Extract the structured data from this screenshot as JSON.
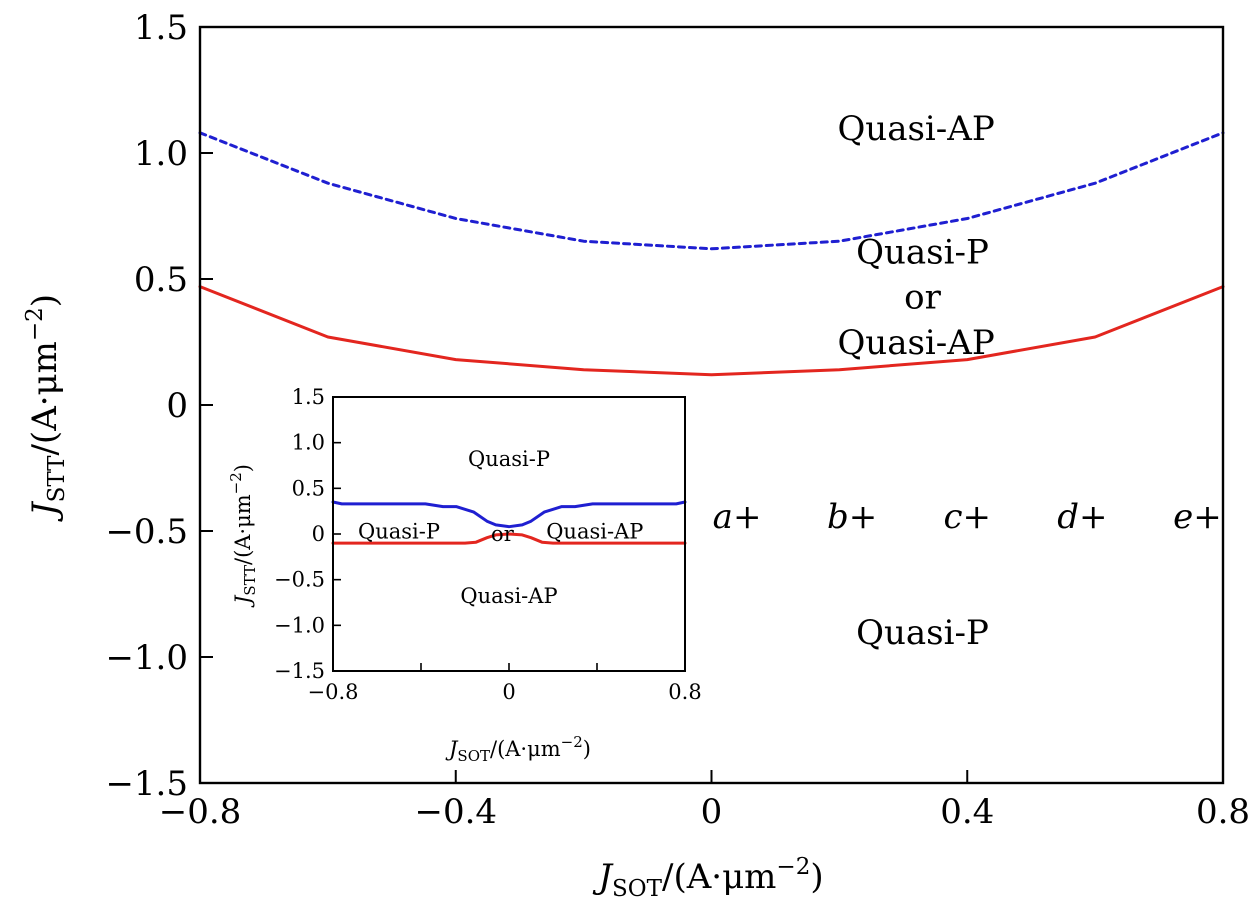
{
  "chart_data": [
    {
      "type": "line",
      "xlim": [
        -0.8,
        0.8
      ],
      "ylim": [
        -1.5,
        1.5
      ],
      "x_ticks": [
        -0.8,
        -0.4,
        0,
        0.4,
        0.8
      ],
      "x_tick_labels": [
        "−0.8",
        "−0.4",
        "0",
        "0.4",
        "0.8"
      ],
      "y_ticks": [
        -1.5,
        -1.0,
        -0.5,
        0,
        0.5,
        1.0,
        1.5
      ],
      "y_tick_labels": [
        "−1.5",
        "−1.0",
        "−0.5",
        "0",
        "0.5",
        "1.0",
        "1.5"
      ],
      "xlabel": {
        "symbol": "J",
        "subscript": "SOT",
        "unit": "/(A·μm",
        "exponent": "−2",
        "close": ")"
      },
      "ylabel": {
        "symbol": "J",
        "subscript": "STT",
        "unit": "/(A·μm",
        "exponent": "−2",
        "close": ")"
      },
      "grid": false,
      "series": [
        {
          "style": "dashed",
          "color": "#1f1fd1",
          "x": [
            -0.8,
            -0.6,
            -0.4,
            -0.2,
            0,
            0.2,
            0.4,
            0.6,
            0.8
          ],
          "y": [
            1.08,
            0.88,
            0.74,
            0.65,
            0.62,
            0.65,
            0.74,
            0.88,
            1.08
          ]
        },
        {
          "style": "solid",
          "color": "#e3261f",
          "x": [
            -0.8,
            -0.6,
            -0.4,
            -0.2,
            0,
            0.2,
            0.4,
            0.6,
            0.8
          ],
          "y": [
            0.47,
            0.27,
            0.18,
            0.14,
            0.12,
            0.14,
            0.18,
            0.27,
            0.47
          ]
        }
      ],
      "region_labels": [
        {
          "text": "Quasi-AP",
          "x": 0.32,
          "y": 1.1
        },
        {
          "text": "Quasi-P",
          "x": 0.33,
          "y": 0.61
        },
        {
          "text": "or",
          "x": 0.33,
          "y": 0.43
        },
        {
          "text": "Quasi-AP",
          "x": 0.32,
          "y": 0.25
        },
        {
          "text": "Quasi-P",
          "x": 0.33,
          "y": -0.9
        }
      ],
      "markers": [
        {
          "letter": "a",
          "x": 0.04,
          "y": -0.44
        },
        {
          "letter": "b",
          "x": 0.22,
          "y": -0.44
        },
        {
          "letter": "c",
          "x": 0.4,
          "y": -0.44
        },
        {
          "letter": "d",
          "x": 0.58,
          "y": -0.44
        },
        {
          "letter": "e",
          "x": 0.76,
          "y": -0.44
        }
      ]
    },
    {
      "type": "line",
      "xlim": [
        -0.8,
        0.8
      ],
      "ylim": [
        -1.5,
        1.5
      ],
      "x_ticks": [
        -0.8,
        0,
        0.8
      ],
      "x_tick_labels": [
        "−0.8",
        "0",
        "0.8"
      ],
      "x_minor_ticks": [
        -0.4,
        0.4
      ],
      "y_ticks": [
        -1.5,
        -1.0,
        -0.5,
        0,
        0.5,
        1.0,
        1.5
      ],
      "y_tick_labels": [
        "−1.5",
        "−1.0",
        "−0.5",
        "0",
        "0.5",
        "1.0",
        "1.5"
      ],
      "xlabel": {
        "symbol": "J",
        "subscript": "SOT",
        "unit": "/(A·μm",
        "exponent": "−2",
        "close": ")"
      },
      "ylabel": {
        "symbol": "J",
        "subscript": "STT",
        "unit": "/(A·μm",
        "exponent": "−2",
        "close": ")"
      },
      "grid": false,
      "series": [
        {
          "style": "solid",
          "color": "#1f1fd1",
          "x": [
            -0.8,
            -0.76,
            -0.6,
            -0.38,
            -0.3,
            -0.24,
            -0.16,
            -0.1,
            -0.06,
            0,
            0.06,
            0.1,
            0.16,
            0.24,
            0.3,
            0.38,
            0.6,
            0.76,
            0.8
          ],
          "y": [
            0.35,
            0.33,
            0.33,
            0.33,
            0.3,
            0.3,
            0.24,
            0.14,
            0.1,
            0.08,
            0.1,
            0.14,
            0.24,
            0.3,
            0.3,
            0.33,
            0.33,
            0.33,
            0.35
          ]
        },
        {
          "style": "solid",
          "color": "#e3261f",
          "x": [
            -0.8,
            -0.2,
            -0.15,
            -0.1,
            -0.06,
            0,
            0.06,
            0.1,
            0.15,
            0.2,
            0.8
          ],
          "y": [
            -0.1,
            -0.1,
            -0.09,
            -0.04,
            -0.01,
            0.0,
            -0.01,
            -0.04,
            -0.09,
            -0.1,
            -0.1
          ]
        }
      ],
      "region_labels": [
        {
          "text": "Quasi-P",
          "x": 0.0,
          "y": 0.82
        },
        {
          "text": "Quasi-P",
          "x": -0.5,
          "y": 0.03
        },
        {
          "text": "or",
          "x": -0.03,
          "y": 0.0
        },
        {
          "text": "Quasi-AP",
          "x": 0.39,
          "y": 0.03
        },
        {
          "text": "Quasi-AP",
          "x": 0.0,
          "y": -0.68
        }
      ]
    }
  ]
}
